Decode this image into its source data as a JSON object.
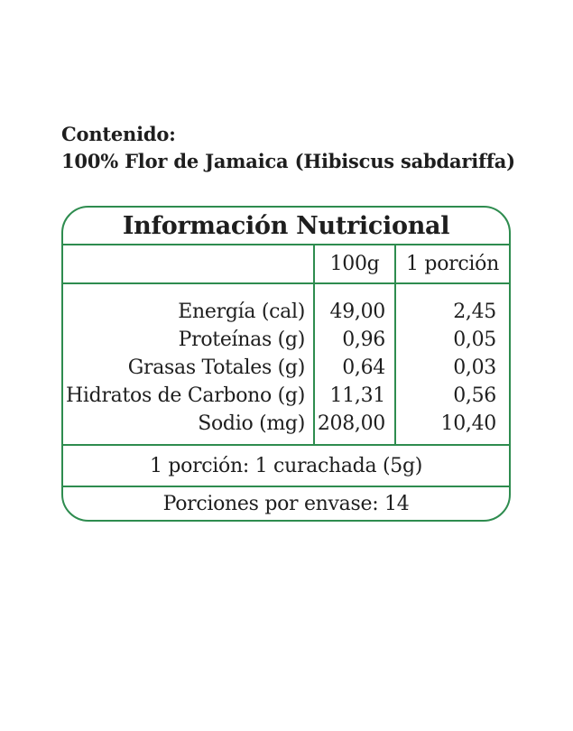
{
  "colors": {
    "border_green": "#2e8c4f",
    "text": "#1e1e1e",
    "background": "#ffffff"
  },
  "content": {
    "heading": "Contenido:",
    "ingredient": "100% Flor de Jamaica (Hibiscus sabdariffa)"
  },
  "table": {
    "title": "Información Nutricional",
    "columns": [
      "100g",
      "1 porción"
    ],
    "rows": [
      {
        "label": "Energía (cal)",
        "per_100g": "49,00",
        "per_portion": "2,45"
      },
      {
        "label": "Proteínas (g)",
        "per_100g": "0,96",
        "per_portion": "0,05"
      },
      {
        "label": "Grasas Totales (g)",
        "per_100g": "0,64",
        "per_portion": "0,03"
      },
      {
        "label": "Hidratos de Carbono (g)",
        "per_100g": "11,31",
        "per_portion": "0,56"
      },
      {
        "label": "Sodio (mg)",
        "per_100g": "208,00",
        "per_portion": "10,40"
      }
    ],
    "serving_note": "1 porción: 1 curachada (5g)",
    "servings_per_container": "Porciones por envase: 14"
  }
}
